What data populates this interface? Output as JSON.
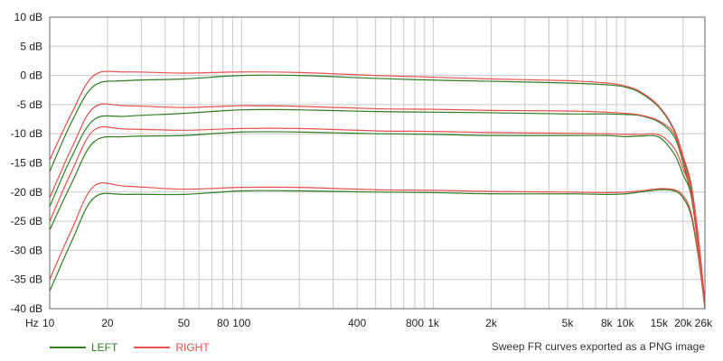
{
  "chart_data": {
    "type": "line",
    "xscale": "log",
    "xlim": [
      10,
      26000
    ],
    "ylim": [
      -40,
      10
    ],
    "grid": true,
    "x_unit_label": "Hz",
    "xticks": [
      {
        "value": 10,
        "label": "10"
      },
      {
        "value": 20,
        "label": "20"
      },
      {
        "value": 50,
        "label": "50"
      },
      {
        "value": 80,
        "label": "80"
      },
      {
        "value": 100,
        "label": "100"
      },
      {
        "value": 400,
        "label": "400"
      },
      {
        "value": 800,
        "label": "800"
      },
      {
        "value": 1000,
        "label": "1k"
      },
      {
        "value": 2000,
        "label": "2k"
      },
      {
        "value": 5000,
        "label": "5k"
      },
      {
        "value": 8000,
        "label": "8k"
      },
      {
        "value": 10000,
        "label": "10k"
      },
      {
        "value": 15000,
        "label": "15k"
      },
      {
        "value": 20000,
        "label": "20k"
      },
      {
        "value": 26000,
        "label": "26k"
      }
    ],
    "yticks": [
      {
        "value": 10,
        "label": "10 dB"
      },
      {
        "value": 5,
        "label": "5 dB"
      },
      {
        "value": 0,
        "label": "0 dB"
      },
      {
        "value": -5,
        "label": "-5 dB"
      },
      {
        "value": -10,
        "label": "-10 dB"
      },
      {
        "value": -15,
        "label": "-15 dB"
      },
      {
        "value": -20,
        "label": "-20 dB"
      },
      {
        "value": -25,
        "label": "-25 dB"
      },
      {
        "value": -30,
        "label": "-30 dB"
      },
      {
        "value": -35,
        "label": "-35 dB"
      },
      {
        "value": -40,
        "label": "-40 dB"
      }
    ],
    "legend": {
      "placement": "bottom-left",
      "entries": [
        {
          "name": "LEFT",
          "color": "#2e7d1f"
        },
        {
          "name": "RIGHT",
          "color": "#e8504f"
        }
      ]
    },
    "colors": {
      "LEFT": "#2e7d1f",
      "RIGHT": "#e8504f",
      "grid": "#c8c8c8",
      "frame": "#666666"
    },
    "series": [
      {
        "name": "LEFT",
        "points": [
          [
            10,
            -16.5
          ],
          [
            13,
            -8
          ],
          [
            17,
            -1.8
          ],
          [
            25,
            -0.9
          ],
          [
            50,
            -0.6
          ],
          [
            100,
            0.0
          ],
          [
            200,
            0.0
          ],
          [
            500,
            -0.5
          ],
          [
            1000,
            -0.8
          ],
          [
            2000,
            -1.0
          ],
          [
            5000,
            -1.3
          ],
          [
            8000,
            -1.6
          ],
          [
            10000,
            -2.0
          ],
          [
            12000,
            -3.0
          ],
          [
            15000,
            -5.5
          ],
          [
            18000,
            -9.5
          ],
          [
            20000,
            -14.0
          ],
          [
            22000,
            -19.0
          ],
          [
            24000,
            -28.0
          ],
          [
            26000,
            -39.0
          ]
        ]
      },
      {
        "name": "RIGHT",
        "points": [
          [
            10,
            -14.5
          ],
          [
            13,
            -6.5
          ],
          [
            17,
            0.0
          ],
          [
            25,
            0.6
          ],
          [
            50,
            0.4
          ],
          [
            100,
            0.6
          ],
          [
            200,
            0.5
          ],
          [
            500,
            0.0
          ],
          [
            1000,
            -0.3
          ],
          [
            2000,
            -0.6
          ],
          [
            5000,
            -0.9
          ],
          [
            8000,
            -1.3
          ],
          [
            10000,
            -1.8
          ],
          [
            12000,
            -2.8
          ],
          [
            15000,
            -5.3
          ],
          [
            18000,
            -9.3
          ],
          [
            20000,
            -13.8
          ],
          [
            22000,
            -18.5
          ],
          [
            24000,
            -27.5
          ],
          [
            26000,
            -39.0
          ]
        ]
      },
      {
        "name": "LEFT",
        "points": [
          [
            10,
            -22.5
          ],
          [
            13,
            -14
          ],
          [
            17,
            -7.6
          ],
          [
            25,
            -7.0
          ],
          [
            50,
            -6.5
          ],
          [
            100,
            -5.9
          ],
          [
            200,
            -5.9
          ],
          [
            500,
            -6.2
          ],
          [
            1000,
            -6.3
          ],
          [
            2000,
            -6.4
          ],
          [
            5000,
            -6.6
          ],
          [
            8000,
            -6.6
          ],
          [
            10000,
            -6.7
          ],
          [
            12000,
            -6.9
          ],
          [
            15000,
            -8.0
          ],
          [
            18000,
            -10.5
          ],
          [
            20000,
            -15.0
          ],
          [
            22000,
            -20.5
          ],
          [
            24000,
            -29.0
          ],
          [
            26000,
            -39.5
          ]
        ]
      },
      {
        "name": "RIGHT",
        "points": [
          [
            10,
            -21.0
          ],
          [
            13,
            -12.5
          ],
          [
            17,
            -5.5
          ],
          [
            25,
            -5.2
          ],
          [
            50,
            -5.5
          ],
          [
            100,
            -5.2
          ],
          [
            200,
            -5.3
          ],
          [
            500,
            -5.7
          ],
          [
            1000,
            -5.8
          ],
          [
            2000,
            -6.0
          ],
          [
            5000,
            -6.1
          ],
          [
            8000,
            -6.3
          ],
          [
            10000,
            -6.5
          ],
          [
            12000,
            -6.8
          ],
          [
            15000,
            -7.8
          ],
          [
            18000,
            -10.0
          ],
          [
            20000,
            -14.5
          ],
          [
            22000,
            -20.0
          ],
          [
            24000,
            -28.5
          ],
          [
            26000,
            -39.5
          ]
        ]
      },
      {
        "name": "LEFT",
        "points": [
          [
            10,
            -26.5
          ],
          [
            13,
            -18.5
          ],
          [
            17,
            -11.4
          ],
          [
            25,
            -10.5
          ],
          [
            50,
            -10.3
          ],
          [
            100,
            -9.7
          ],
          [
            200,
            -9.7
          ],
          [
            500,
            -10.0
          ],
          [
            1000,
            -10.1
          ],
          [
            2000,
            -10.3
          ],
          [
            5000,
            -10.3
          ],
          [
            8000,
            -10.3
          ],
          [
            10000,
            -10.5
          ],
          [
            12000,
            -10.4
          ],
          [
            15000,
            -10.6
          ],
          [
            18000,
            -13.5
          ],
          [
            20000,
            -17.0
          ],
          [
            22000,
            -20.5
          ],
          [
            24000,
            -29.5
          ],
          [
            26000,
            -39.8
          ]
        ]
      },
      {
        "name": "RIGHT",
        "points": [
          [
            10,
            -25.0
          ],
          [
            13,
            -16.5
          ],
          [
            17,
            -9.4
          ],
          [
            25,
            -9.2
          ],
          [
            50,
            -9.4
          ],
          [
            100,
            -9.1
          ],
          [
            200,
            -9.1
          ],
          [
            500,
            -9.5
          ],
          [
            1000,
            -9.6
          ],
          [
            2000,
            -9.8
          ],
          [
            5000,
            -9.9
          ],
          [
            8000,
            -10.0
          ],
          [
            10000,
            -10.1
          ],
          [
            12000,
            -10.1
          ],
          [
            15000,
            -10.2
          ],
          [
            18000,
            -12.5
          ],
          [
            20000,
            -16.0
          ],
          [
            22000,
            -20.0
          ],
          [
            24000,
            -29.0
          ],
          [
            26000,
            -39.8
          ]
        ]
      },
      {
        "name": "LEFT",
        "points": [
          [
            10,
            -37.0
          ],
          [
            13,
            -28.5
          ],
          [
            17,
            -21.0
          ],
          [
            25,
            -20.4
          ],
          [
            50,
            -20.4
          ],
          [
            100,
            -19.8
          ],
          [
            200,
            -19.8
          ],
          [
            500,
            -20.0
          ],
          [
            1000,
            -20.1
          ],
          [
            2000,
            -20.3
          ],
          [
            5000,
            -20.3
          ],
          [
            8000,
            -20.4
          ],
          [
            10000,
            -20.3
          ],
          [
            12000,
            -20.0
          ],
          [
            15000,
            -19.6
          ],
          [
            18000,
            -19.8
          ],
          [
            20000,
            -21.0
          ],
          [
            22000,
            -24.0
          ],
          [
            24000,
            -31.0
          ],
          [
            26000,
            -40.0
          ]
        ]
      },
      {
        "name": "RIGHT",
        "points": [
          [
            10,
            -35.0
          ],
          [
            13,
            -26.5
          ],
          [
            17,
            -19.0
          ],
          [
            25,
            -19.0
          ],
          [
            50,
            -19.5
          ],
          [
            100,
            -19.2
          ],
          [
            200,
            -19.2
          ],
          [
            500,
            -19.6
          ],
          [
            1000,
            -19.7
          ],
          [
            2000,
            -19.9
          ],
          [
            5000,
            -20.0
          ],
          [
            8000,
            -20.1
          ],
          [
            10000,
            -20.0
          ],
          [
            12000,
            -19.8
          ],
          [
            15000,
            -19.4
          ],
          [
            18000,
            -19.6
          ],
          [
            20000,
            -20.6
          ],
          [
            22000,
            -23.5
          ],
          [
            24000,
            -30.5
          ],
          [
            26000,
            -40.0
          ]
        ]
      }
    ]
  },
  "footer": {
    "note": "Sweep FR curves exported as a PNG image"
  }
}
